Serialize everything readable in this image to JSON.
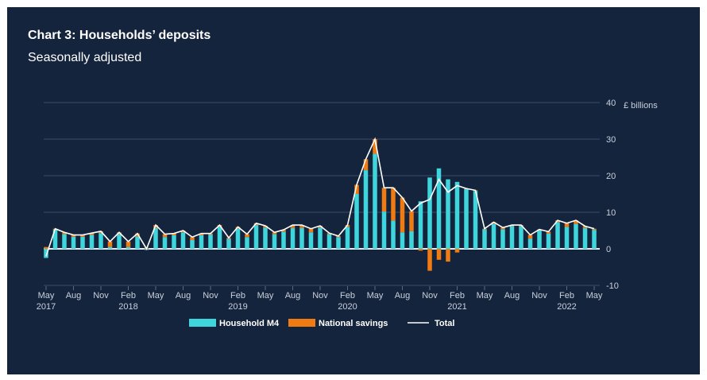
{
  "chart_data": {
    "type": "bar",
    "stacked": true,
    "title": "Chart 3: Households’ deposits",
    "subtitle": "Seasonally adjusted",
    "ylabel": "£ billions",
    "ylim": [
      -10,
      40
    ],
    "yticks": [
      40,
      30,
      20,
      10,
      0,
      -10
    ],
    "grid": true,
    "legend_position": "bottom",
    "x_start": "May 2017",
    "x_end": "May 2022",
    "x_tick_labels": [
      {
        "month": "May",
        "year": "2017"
      },
      {
        "month": "Aug",
        "year": ""
      },
      {
        "month": "Nov",
        "year": ""
      },
      {
        "month": "Feb",
        "year": "2018"
      },
      {
        "month": "May",
        "year": ""
      },
      {
        "month": "Aug",
        "year": ""
      },
      {
        "month": "Nov",
        "year": ""
      },
      {
        "month": "Feb",
        "year": "2019"
      },
      {
        "month": "May",
        "year": ""
      },
      {
        "month": "Aug",
        "year": ""
      },
      {
        "month": "Nov",
        "year": ""
      },
      {
        "month": "Feb",
        "year": "2020"
      },
      {
        "month": "May",
        "year": ""
      },
      {
        "month": "Aug",
        "year": ""
      },
      {
        "month": "Nov",
        "year": ""
      },
      {
        "month": "Feb",
        "year": "2021"
      },
      {
        "month": "May",
        "year": ""
      },
      {
        "month": "Aug",
        "year": ""
      },
      {
        "month": "Nov",
        "year": ""
      },
      {
        "month": "Feb",
        "year": "2022"
      },
      {
        "month": "May",
        "year": ""
      }
    ],
    "series": [
      {
        "name": "Household M4",
        "type": "bar",
        "color": "#3ed6dc",
        "values": [
          -2.5,
          5.2,
          4.0,
          3.3,
          3.3,
          3.8,
          4.3,
          0.5,
          4.0,
          0.5,
          3.4,
          -0.3,
          5.7,
          3.2,
          3.7,
          4.5,
          2.4,
          3.7,
          3.9,
          6.0,
          2.7,
          5.5,
          3.2,
          6.5,
          5.8,
          4.0,
          4.7,
          5.7,
          5.7,
          4.5,
          5.8,
          4.0,
          3.2,
          6.0,
          15.0,
          21.5,
          26.0,
          10.2,
          7.7,
          4.5,
          4.8,
          13.0,
          19.5,
          22.0,
          19.0,
          18.3,
          16.3,
          15.8,
          5.3,
          6.8,
          5.3,
          6.2,
          6.2,
          2.8,
          5.0,
          4.2,
          7.3,
          6.0,
          6.8,
          5.7,
          5.2
        ]
      },
      {
        "name": "National savings",
        "type": "bar",
        "color": "#f07b12",
        "values": [
          0.5,
          0.3,
          0.5,
          0.5,
          0.5,
          0.5,
          0.5,
          1.5,
          0.5,
          1.5,
          0.8,
          0.3,
          0.8,
          0.8,
          0.5,
          0.5,
          0.8,
          0.5,
          0.3,
          0.5,
          0.3,
          0.5,
          0.8,
          0.5,
          0.5,
          0.5,
          0.5,
          0.8,
          0.8,
          1.0,
          0.5,
          0.3,
          0.3,
          0.5,
          2.5,
          3.0,
          4.0,
          6.5,
          9.0,
          9.5,
          5.5,
          -0.5,
          -6.0,
          -3.0,
          -3.5,
          -1.0,
          0.2,
          0.2,
          0.2,
          0.5,
          0.5,
          0.3,
          0.3,
          1.0,
          0.3,
          0.5,
          0.5,
          1.0,
          1.0,
          0.5,
          0.3
        ]
      },
      {
        "name": "Total",
        "type": "line",
        "color": "#ffffff",
        "values": [
          -2.0,
          5.5,
          4.5,
          3.8,
          3.8,
          4.3,
          4.8,
          2.0,
          4.5,
          2.0,
          4.2,
          0.0,
          6.5,
          4.0,
          4.2,
          5.0,
          3.2,
          4.2,
          4.2,
          6.5,
          3.0,
          6.0,
          4.0,
          7.0,
          6.3,
          4.5,
          5.2,
          6.5,
          6.5,
          5.5,
          6.3,
          4.3,
          3.5,
          6.5,
          17.5,
          24.5,
          30.0,
          16.7,
          16.7,
          14.0,
          10.3,
          12.5,
          13.5,
          19.0,
          15.5,
          17.3,
          16.5,
          16.0,
          5.5,
          7.3,
          5.8,
          6.5,
          6.5,
          3.8,
          5.3,
          4.7,
          7.8,
          7.0,
          7.8,
          6.2,
          5.5
        ]
      }
    ]
  }
}
